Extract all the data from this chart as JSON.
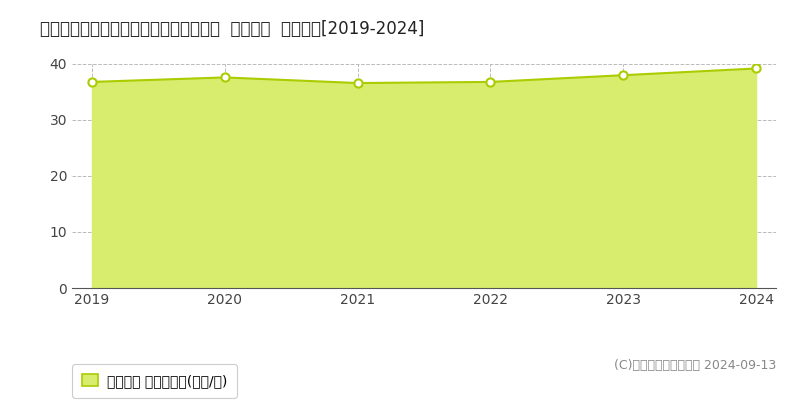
{
  "title": "愛知県春日井市高山町１丁目２１番１外  地価公示  地価推移[2019-2024]",
  "years": [
    2019,
    2020,
    2021,
    2022,
    2023,
    2024
  ],
  "values": [
    36.8,
    37.6,
    36.6,
    36.8,
    38.0,
    39.2
  ],
  "line_color": "#aacc00",
  "fill_color": "#d8ed6e",
  "marker_color": "#ffffff",
  "marker_edge_color": "#aacc00",
  "grid_color": "#bbbbbb",
  "bg_color": "#ffffff",
  "plot_bg_color": "#ffffff",
  "ylim": [
    0,
    40
  ],
  "yticks": [
    0,
    10,
    20,
    30,
    40
  ],
  "legend_label": "地価公示 平均坪単価(万円/坪)",
  "copyright_text": "(C)土地価格ドットコム 2024-09-13",
  "title_fontsize": 12,
  "tick_fontsize": 10,
  "legend_fontsize": 10,
  "copyright_fontsize": 9
}
